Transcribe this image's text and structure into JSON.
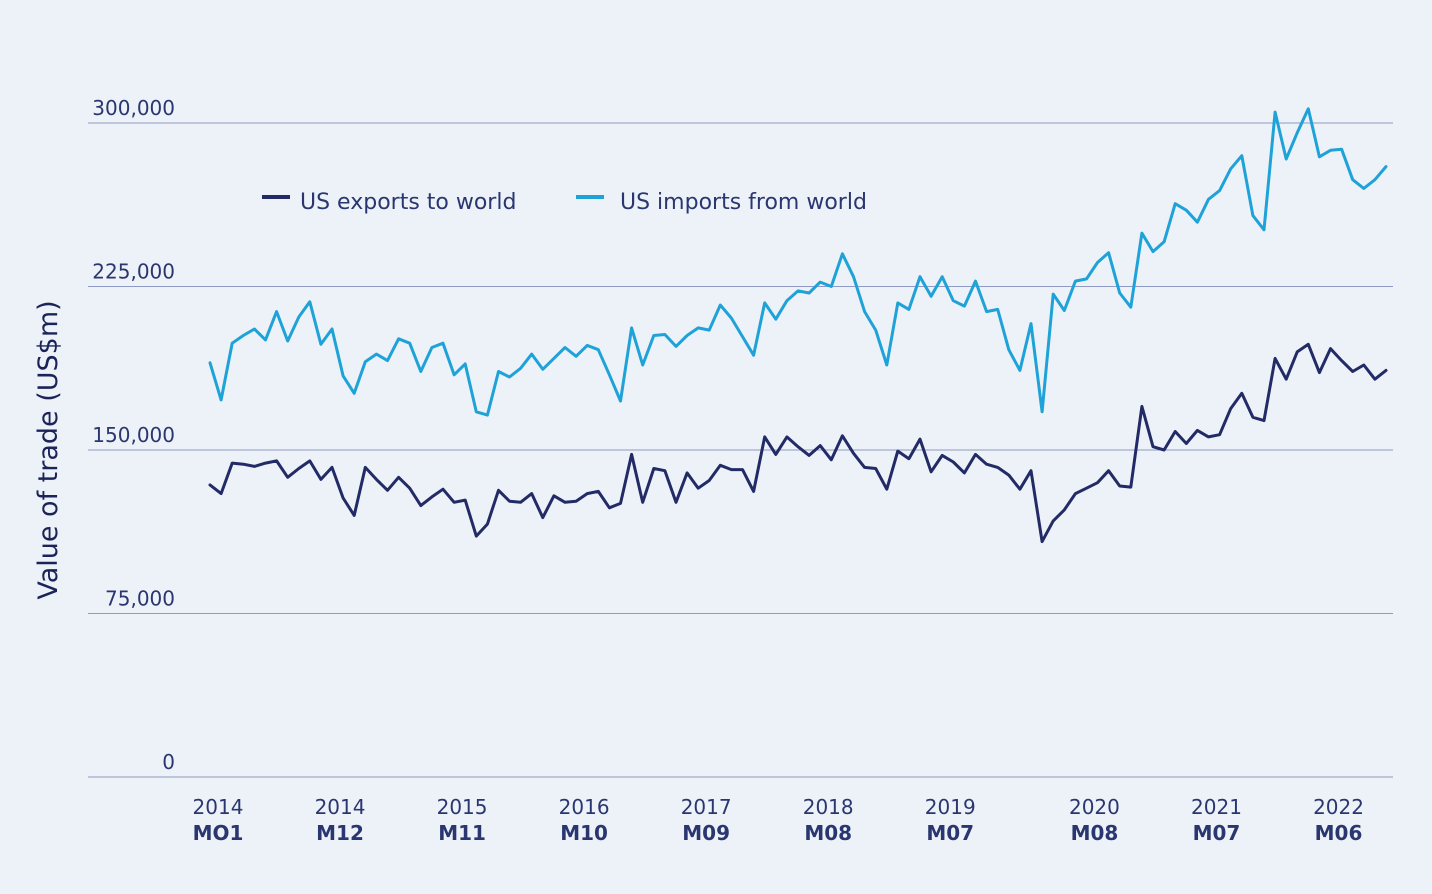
{
  "colors": {
    "background": "#edf2f8",
    "exports": "#222b66",
    "imports": "#1ea2d8",
    "grid": "#8f9bc4",
    "text": "#2a3670"
  },
  "chart_data": {
    "type": "line",
    "title": "",
    "ylabel": "Value of trade (US$m)",
    "xlabel": "",
    "ylim": [
      0,
      300000
    ],
    "yticks": [
      0,
      75000,
      150000,
      225000,
      300000
    ],
    "ytick_labels": [
      "0",
      "75,000",
      "150,000",
      "225,000",
      "300,000"
    ],
    "grid": true,
    "legend_position": "top-left",
    "x_ticks": [
      {
        "index": 0,
        "year": "2014",
        "month": "MO1"
      },
      {
        "index": 11,
        "year": "2014",
        "month": "M12"
      },
      {
        "index": 22,
        "year": "2015",
        "month": "M11"
      },
      {
        "index": 33,
        "year": "2016",
        "month": "M10"
      },
      {
        "index": 44,
        "year": "2017",
        "month": "M09"
      },
      {
        "index": 55,
        "year": "2018",
        "month": "M08"
      },
      {
        "index": 66,
        "year": "2019",
        "month": "M07"
      },
      {
        "index": 79,
        "year": "2020",
        "month": "M08"
      },
      {
        "index": 90,
        "year": "2021",
        "month": "M07"
      },
      {
        "index": 101,
        "year": "2022",
        "month": "M06"
      }
    ],
    "n_points": 107,
    "series": [
      {
        "name": "US exports to world",
        "color": "#222b66",
        "values": [
          134000,
          130000,
          144000,
          143500,
          142500,
          144000,
          145000,
          137500,
          141500,
          145000,
          136500,
          142000,
          128000,
          120000,
          142000,
          136500,
          131500,
          137500,
          132500,
          124500,
          128500,
          132000,
          126000,
          127000,
          110500,
          116000,
          131500,
          126500,
          126000,
          130000,
          119000,
          129000,
          126000,
          126500,
          130000,
          131000,
          123500,
          125500,
          148000,
          126000,
          141500,
          140500,
          126000,
          139500,
          132500,
          136000,
          143000,
          141000,
          141000,
          131000,
          156000,
          148000,
          156000,
          151500,
          147500,
          152000,
          145500,
          156500,
          148500,
          142000,
          141500,
          132000,
          149500,
          146000,
          155000,
          140000,
          147500,
          144500,
          139500,
          148000,
          143500,
          142000,
          138500,
          132000,
          140500,
          108000,
          117500,
          122500,
          130000,
          132500,
          135000,
          140500,
          133500,
          133000,
          170000,
          151500,
          150000,
          158500,
          153000,
          159000,
          156000,
          157000,
          169000,
          176000,
          165000,
          163500,
          192000,
          182500,
          195000,
          198500,
          185500,
          196500,
          191000,
          186000,
          189000,
          182500,
          186500
        ]
      },
      {
        "name": "US imports from world",
        "color": "#1ea2d8",
        "values": [
          190000,
          173000,
          199000,
          202500,
          205500,
          200500,
          213500,
          200000,
          211000,
          218000,
          198500,
          205500,
          184000,
          176000,
          190500,
          194000,
          191000,
          201000,
          199000,
          186000,
          197000,
          199000,
          184500,
          189500,
          167500,
          166000,
          186000,
          183500,
          187500,
          194000,
          187000,
          192000,
          197000,
          193000,
          198000,
          196000,
          184500,
          172500,
          206000,
          189000,
          202500,
          203000,
          197500,
          202500,
          206000,
          205000,
          216500,
          210500,
          202000,
          193500,
          217500,
          210000,
          218500,
          223000,
          222000,
          227000,
          225000,
          240000,
          229500,
          213500,
          205000,
          189000,
          217500,
          214500,
          229500,
          220500,
          229500,
          218500,
          216000,
          227500,
          213500,
          214500,
          196000,
          186500,
          208000,
          167500,
          221500,
          214000,
          227500,
          228500,
          236000,
          240500,
          222000,
          215500,
          249500,
          241000,
          245500,
          263000,
          260000,
          254500,
          265000,
          269000,
          279000,
          285000,
          257500,
          251000,
          305000,
          283500,
          295500,
          306500,
          284500,
          287500,
          288000,
          274000,
          270000,
          274000,
          280000
        ]
      }
    ]
  }
}
